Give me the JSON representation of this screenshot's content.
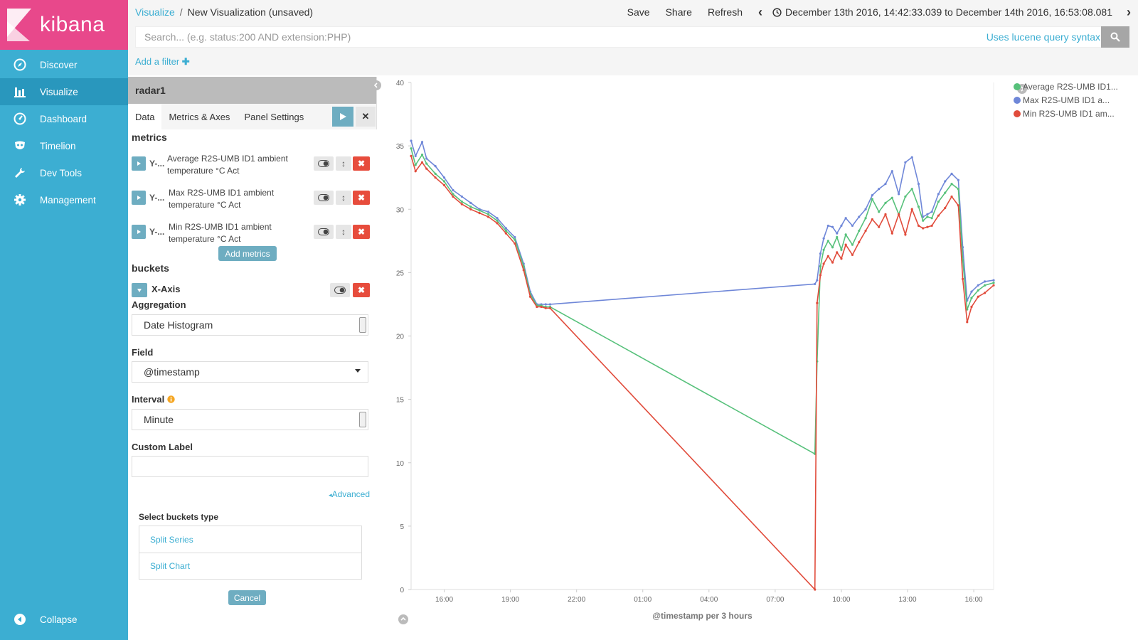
{
  "app": {
    "logo_text": "kibana"
  },
  "sidebar": {
    "items": [
      {
        "label": "Discover",
        "icon": "compass-icon"
      },
      {
        "label": "Visualize",
        "icon": "bar-chart-icon",
        "active": true
      },
      {
        "label": "Dashboard",
        "icon": "gauge-icon"
      },
      {
        "label": "Timelion",
        "icon": "mask-icon"
      },
      {
        "label": "Dev Tools",
        "icon": "wrench-icon"
      },
      {
        "label": "Management",
        "icon": "gear-icon"
      }
    ],
    "collapse_label": "Collapse"
  },
  "topbar": {
    "breadcrumb_link": "Visualize",
    "breadcrumb_sep": "/",
    "breadcrumb_current": "New Visualization (unsaved)",
    "save_label": "Save",
    "share_label": "Share",
    "refresh_label": "Refresh",
    "time_range": "December 13th 2016, 14:42:33.039 to December 14th 2016, 16:53:08.081"
  },
  "query": {
    "placeholder": "Search... (e.g. status:200 AND extension:PHP)",
    "lucene_label": "Uses lucene query syntax",
    "add_filter_label": "Add a filter"
  },
  "editor": {
    "title": "radar1",
    "tabs": [
      "Data",
      "Metrics & Axes",
      "Panel Settings"
    ],
    "metrics_heading": "metrics",
    "metrics": [
      {
        "prefix": "Y-...",
        "label": "Average R2S-UMB ID1 ambient temperature °C Act"
      },
      {
        "prefix": "Y-...",
        "label": "Max R2S-UMB ID1 ambient temperature °C Act"
      },
      {
        "prefix": "Y-...",
        "label": "Min R2S-UMB ID1 ambient temperature °C Act"
      }
    ],
    "add_metrics_label": "Add metrics",
    "buckets_heading": "buckets",
    "bucket_label": "X-Axis",
    "aggregation_label": "Aggregation",
    "aggregation_value": "Date Histogram",
    "field_label": "Field",
    "field_value": "@timestamp",
    "interval_label": "Interval",
    "interval_value": "Minute",
    "custom_label_label": "Custom Label",
    "custom_label_value": "",
    "advanced_label": "Advanced",
    "select_buckets_label": "Select buckets type",
    "bucket_types": [
      "Split Series",
      "Split Chart"
    ],
    "cancel_label": "Cancel"
  },
  "colors": {
    "average": "#57c17b",
    "max": "#6f87d8",
    "min": "#e14c3c",
    "accent": "#3caed2",
    "sidebar": "#3caed2",
    "logo": "#e8488b"
  },
  "chart_data": {
    "type": "line",
    "xlabel": "@timestamp per 3 hours",
    "ylabel": "",
    "ylim": [
      0,
      40
    ],
    "yticks": [
      0,
      5,
      10,
      15,
      20,
      25,
      30,
      35,
      40
    ],
    "xticks": [
      "16:00",
      "19:00",
      "22:00",
      "01:00",
      "04:00",
      "07:00",
      "10:00",
      "13:00",
      "16:00"
    ],
    "x_range_hours": [
      14.5,
      40.9
    ],
    "xtick_hours": [
      16,
      19,
      22,
      25,
      28,
      31,
      34,
      37,
      40
    ],
    "legend_position": "top-right",
    "series": [
      {
        "name": "Average R2S-UMB ID1...",
        "color": "#57c17b",
        "x": [
          14.5,
          14.7,
          15.0,
          15.2,
          15.6,
          16.0,
          16.4,
          16.8,
          17.2,
          17.6,
          18.0,
          18.4,
          18.8,
          19.2,
          19.6,
          19.9,
          20.2,
          20.4,
          20.6,
          20.8,
          32.8,
          32.9,
          33.05,
          33.2,
          33.4,
          33.6,
          33.8,
          34.0,
          34.2,
          34.5,
          34.8,
          35.1,
          35.4,
          35.7,
          36.0,
          36.3,
          36.6,
          36.9,
          37.2,
          37.5,
          37.7,
          37.9,
          38.1,
          38.4,
          38.7,
          39.0,
          39.3,
          39.5,
          39.7,
          39.9,
          40.2,
          40.5,
          40.9
        ],
        "values": [
          34.8,
          33.5,
          34.3,
          33.6,
          32.8,
          32.2,
          31.2,
          30.6,
          30.2,
          29.9,
          29.6,
          29.1,
          28.3,
          27.6,
          25.5,
          23.3,
          22.4,
          22.4,
          22.3,
          22.3,
          10.7,
          18.0,
          25.5,
          26.8,
          27.5,
          27.0,
          27.8,
          26.8,
          28.0,
          27.2,
          28.3,
          29.3,
          30.8,
          29.8,
          30.5,
          30.9,
          29.6,
          31.0,
          31.6,
          30.2,
          29.1,
          29.4,
          29.3,
          30.6,
          31.3,
          32.0,
          31.6,
          26.0,
          22.1,
          23.0,
          23.6,
          24.0,
          24.2
        ]
      },
      {
        "name": "Max R2S-UMB ID1 a...",
        "color": "#6f87d8",
        "x": [
          14.5,
          14.7,
          15.0,
          15.2,
          15.6,
          16.0,
          16.4,
          16.8,
          17.2,
          17.6,
          18.0,
          18.4,
          18.8,
          19.2,
          19.6,
          19.9,
          20.2,
          20.4,
          20.6,
          20.8,
          32.8,
          32.9,
          33.05,
          33.2,
          33.4,
          33.6,
          33.8,
          34.0,
          34.2,
          34.5,
          34.8,
          35.1,
          35.4,
          35.7,
          36.0,
          36.3,
          36.6,
          36.9,
          37.2,
          37.5,
          37.7,
          37.9,
          38.1,
          38.4,
          38.7,
          39.0,
          39.3,
          39.5,
          39.7,
          39.9,
          40.2,
          40.5,
          40.9
        ],
        "values": [
          35.4,
          34.2,
          35.3,
          34.0,
          33.4,
          32.5,
          31.5,
          31.0,
          30.5,
          30.0,
          29.8,
          29.3,
          28.5,
          27.8,
          25.7,
          23.5,
          22.5,
          22.5,
          22.5,
          22.5,
          24.1,
          24.4,
          26.5,
          27.7,
          28.7,
          28.6,
          28.1,
          28.7,
          29.3,
          28.7,
          29.4,
          30.0,
          31.1,
          31.6,
          32.0,
          33.0,
          31.2,
          33.7,
          34.1,
          32.0,
          29.4,
          29.6,
          29.8,
          31.2,
          32.2,
          32.8,
          32.3,
          27.0,
          22.8,
          23.5,
          24.0,
          24.3,
          24.4
        ]
      },
      {
        "name": "Min R2S-UMB ID1 am...",
        "color": "#e14c3c",
        "x": [
          14.5,
          14.7,
          15.0,
          15.2,
          15.6,
          16.0,
          16.4,
          16.8,
          17.2,
          17.6,
          18.0,
          18.4,
          18.8,
          19.2,
          19.6,
          19.9,
          20.2,
          20.4,
          20.6,
          20.8,
          32.8,
          32.9,
          33.05,
          33.2,
          33.4,
          33.6,
          33.8,
          34.0,
          34.2,
          34.5,
          34.8,
          35.1,
          35.4,
          35.7,
          36.0,
          36.3,
          36.6,
          36.9,
          37.2,
          37.5,
          37.7,
          37.9,
          38.1,
          38.4,
          38.7,
          39.0,
          39.3,
          39.5,
          39.7,
          39.9,
          40.2,
          40.5,
          40.9
        ],
        "values": [
          34.2,
          33.0,
          33.7,
          33.2,
          32.5,
          31.9,
          31.0,
          30.4,
          30.0,
          29.7,
          29.4,
          28.9,
          28.1,
          27.3,
          25.2,
          23.1,
          22.3,
          22.3,
          22.2,
          22.2,
          0.0,
          22.6,
          24.8,
          25.7,
          26.3,
          25.8,
          26.6,
          26.1,
          27.2,
          26.4,
          27.4,
          28.3,
          29.2,
          28.6,
          29.6,
          28.1,
          29.6,
          28.0,
          30.0,
          28.7,
          28.5,
          28.6,
          28.7,
          29.5,
          30.1,
          31.0,
          30.3,
          24.5,
          21.1,
          22.3,
          23.1,
          23.4,
          24.0
        ]
      }
    ]
  }
}
